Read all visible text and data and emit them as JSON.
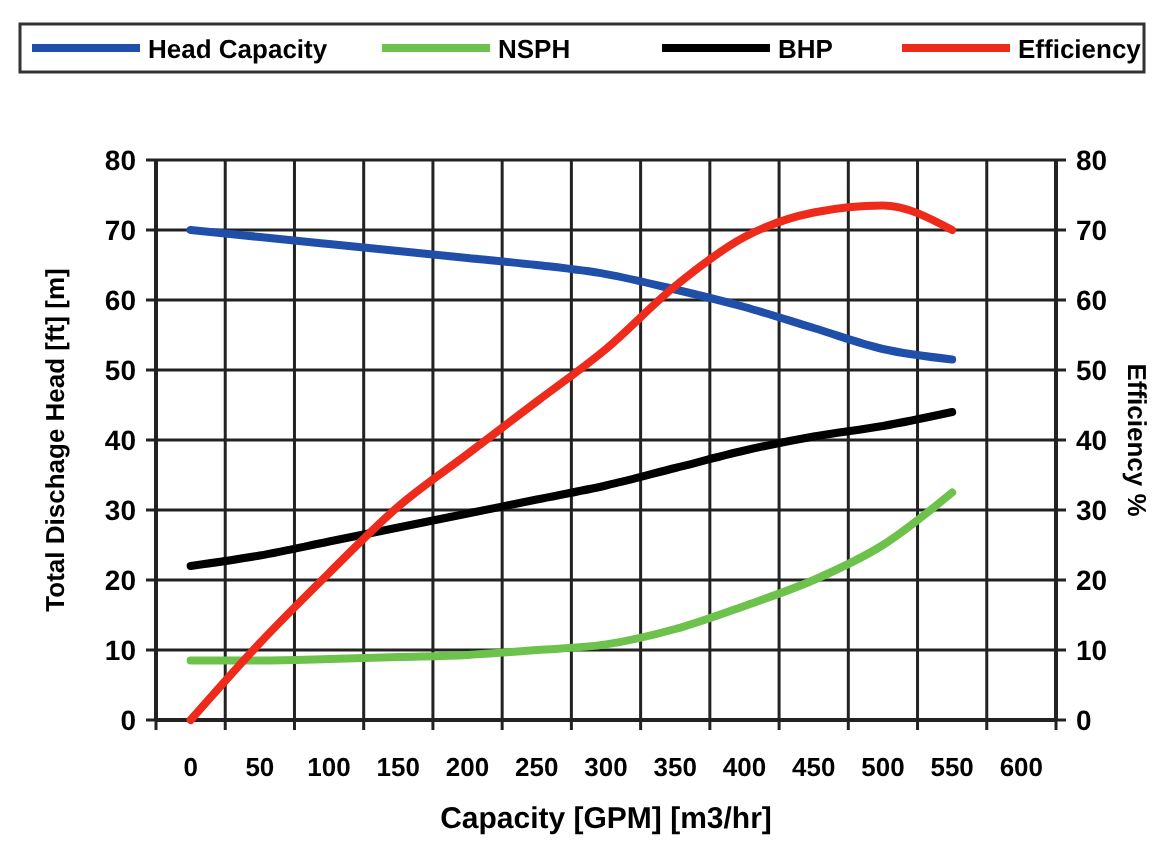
{
  "chart_data": {
    "type": "line",
    "xlabel": "Capacity [GPM] [m3/hr]",
    "ylabel": "Total Dischage Head [ft] [m]",
    "y2label": "Efficiency %",
    "x": [
      0,
      50,
      100,
      150,
      200,
      250,
      300,
      350,
      400,
      450,
      500,
      550
    ],
    "xlim": [
      -25,
      625
    ],
    "xticks": [
      {
        "value": -25,
        "label": null
      },
      0,
      {
        "value": 25,
        "label": null
      },
      50,
      {
        "value": 75,
        "label": null
      },
      100,
      {
        "value": 125,
        "label": null
      },
      150,
      {
        "value": 175,
        "label": null
      },
      200,
      {
        "value": 225,
        "label": null
      },
      250,
      {
        "value": 275,
        "label": null
      },
      300,
      {
        "value": 325,
        "label": null
      },
      350,
      {
        "value": 375,
        "label": null
      },
      400,
      {
        "value": 425,
        "label": null
      },
      450,
      {
        "value": 475,
        "label": null
      },
      500,
      {
        "value": 525,
        "label": null
      },
      550,
      {
        "value": 575,
        "label": null
      },
      600,
      {
        "value": 625,
        "label": null
      }
    ],
    "ylim": [
      0,
      80
    ],
    "yticks": [
      0,
      10,
      20,
      30,
      40,
      50,
      60,
      70,
      80
    ],
    "y2lim": [
      0,
      80
    ],
    "y2ticks": [
      0,
      10,
      20,
      30,
      40,
      50,
      60,
      70,
      80
    ],
    "grid": true,
    "legend": "top",
    "marker": "none",
    "line_style": "solid",
    "series": [
      {
        "name": "Head Capacity",
        "color": "#1f4fa8",
        "values": [
          70,
          69,
          68,
          67,
          66,
          65,
          63.7,
          61.5,
          59,
          56,
          53,
          51.5
        ]
      },
      {
        "name": "NSPH",
        "color": "#6cc24a",
        "values": [
          8.5,
          8.5,
          8.7,
          9,
          9.3,
          10,
          10.8,
          13,
          16.3,
          20,
          25,
          32.5
        ]
      },
      {
        "name": "BHP",
        "color": "#000000",
        "values": [
          22,
          23.5,
          25.5,
          27.5,
          29.5,
          31.5,
          33.5,
          36,
          38.5,
          40.5,
          42,
          44
        ]
      },
      {
        "name": "Efficiency",
        "color": "#ee2a1b",
        "values": [
          0,
          11,
          21,
          30.5,
          38,
          45.5,
          53,
          62,
          69,
          72.5,
          73.5,
          70
        ]
      }
    ]
  }
}
